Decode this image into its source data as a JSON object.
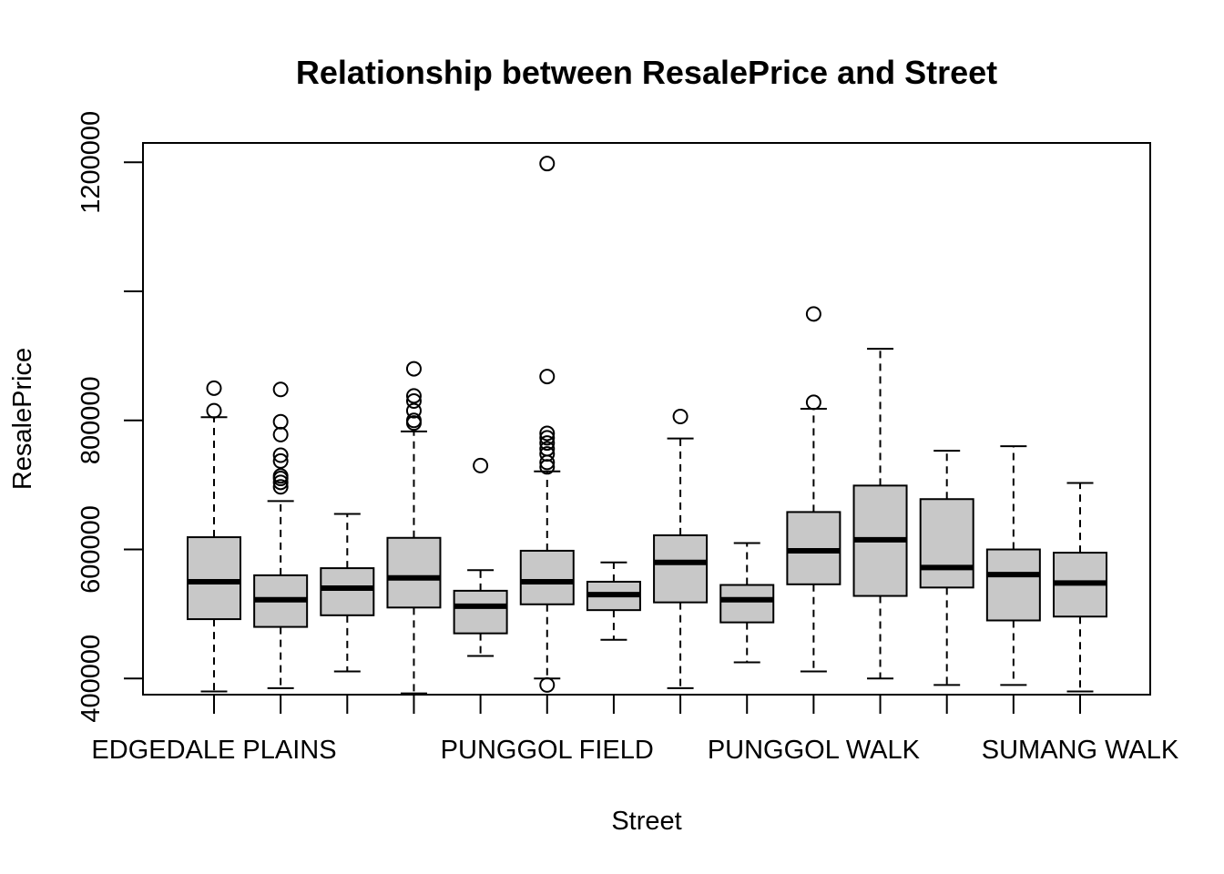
{
  "chart_data": {
    "type": "boxplot",
    "title": "Relationship between ResalePrice and Street",
    "xlabel": "Street",
    "ylabel": "ResalePrice",
    "ylim": [
      375000,
      1230000
    ],
    "yticks": [
      400000,
      600000,
      800000,
      1200000
    ],
    "ytick_labels": [
      "400000",
      "600000",
      "800000",
      "1200000"
    ],
    "x_tick_labels": [
      {
        "index": 0,
        "label": "EDGEDALE PLAINS"
      },
      {
        "index": 5,
        "label": "PUNGGOL FIELD"
      },
      {
        "index": 9,
        "label": "PUNGGOL WALK"
      },
      {
        "index": 13,
        "label": "SUMANG WALK"
      }
    ],
    "box_fill": "#c8c8c8",
    "grid": false,
    "boxes": [
      {
        "whisker_low": 380000,
        "q1": 492000,
        "median": 550000,
        "q3": 619000,
        "whisker_high": 805000,
        "outliers": [
          815000,
          850000
        ]
      },
      {
        "whisker_low": 385000,
        "q1": 480000,
        "median": 522000,
        "q3": 560000,
        "whisker_high": 675000,
        "outliers": [
          697000,
          704000,
          710000,
          714000,
          737000,
          746000,
          778000,
          798000,
          848000
        ]
      },
      {
        "whisker_low": 411000,
        "q1": 498000,
        "median": 540000,
        "q3": 571000,
        "whisker_high": 655000,
        "outliers": []
      },
      {
        "whisker_low": 377000,
        "q1": 510000,
        "median": 556000,
        "q3": 618000,
        "whisker_high": 783000,
        "outliers": [
          796000,
          800000,
          815000,
          830000,
          838000,
          880000
        ]
      },
      {
        "whisker_low": 435000,
        "q1": 470000,
        "median": 512000,
        "q3": 536000,
        "whisker_high": 568000,
        "outliers": [
          730000
        ]
      },
      {
        "whisker_low": 400000,
        "q1": 515000,
        "median": 550000,
        "q3": 598000,
        "whisker_high": 721000,
        "outliers": [
          390000,
          728000,
          735000,
          748000,
          756000,
          765000,
          773000,
          780000,
          868000,
          1198000
        ]
      },
      {
        "whisker_low": 460000,
        "q1": 506000,
        "median": 530000,
        "q3": 550000,
        "whisker_high": 580000,
        "outliers": []
      },
      {
        "whisker_low": 385000,
        "q1": 518000,
        "median": 580000,
        "q3": 622000,
        "whisker_high": 772000,
        "outliers": [
          806000
        ]
      },
      {
        "whisker_low": 425000,
        "q1": 487000,
        "median": 522000,
        "q3": 545000,
        "whisker_high": 610000,
        "outliers": []
      },
      {
        "whisker_low": 411000,
        "q1": 546000,
        "median": 598000,
        "q3": 658000,
        "whisker_high": 818000,
        "outliers": [
          828000,
          965000
        ]
      },
      {
        "whisker_low": 400000,
        "q1": 528000,
        "median": 615000,
        "q3": 699000,
        "whisker_high": 911000,
        "outliers": []
      },
      {
        "whisker_low": 390000,
        "q1": 541000,
        "median": 572000,
        "q3": 678000,
        "whisker_high": 753000,
        "outliers": []
      },
      {
        "whisker_low": 390000,
        "q1": 490000,
        "median": 561000,
        "q3": 600000,
        "whisker_high": 760000,
        "outliers": []
      },
      {
        "whisker_low": 380000,
        "q1": 496000,
        "median": 548000,
        "q3": 595000,
        "whisker_high": 703000,
        "outliers": []
      }
    ]
  }
}
